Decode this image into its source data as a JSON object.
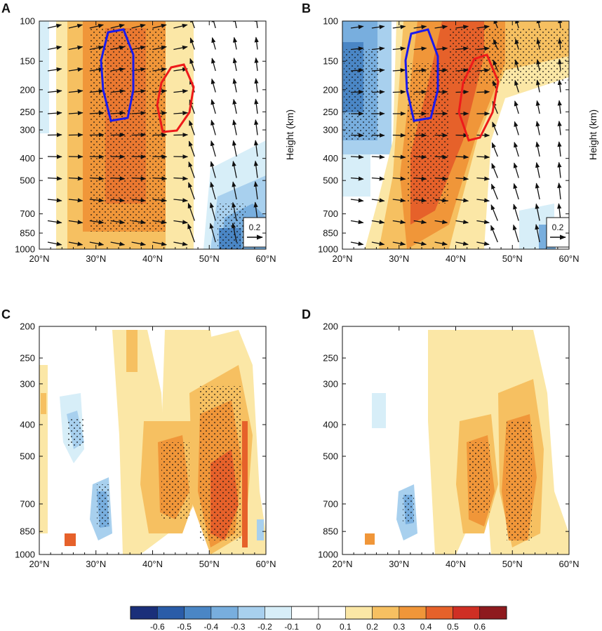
{
  "chart_data": [
    {
      "panel": "A",
      "type": "heatmap",
      "xlabel": "",
      "ylabel": "Height (km)",
      "x_range": [
        20,
        60
      ],
      "x_ticks": [
        "20°N",
        "30°N",
        "40°N",
        "50°N",
        "60°N"
      ],
      "x_tick_values": [
        20,
        30,
        40,
        50,
        60
      ],
      "y_ticks": [
        "100",
        "150",
        "200",
        "250",
        "300",
        "400",
        "500",
        "700",
        "850",
        "1000"
      ],
      "y_tick_values": [
        100,
        150,
        200,
        250,
        300,
        400,
        500,
        700,
        850,
        1000
      ],
      "y_scale": "log",
      "y_direction": "decreasing-up",
      "shading": "correlation",
      "vectors": true,
      "reference_vector": "0.2",
      "highlighted_regions": [
        {
          "color": "#1a1aee",
          "lon_range": [
            32,
            37
          ],
          "level_range": [
            120,
            270
          ]
        },
        {
          "color": "#ee1a1a",
          "lon_range": [
            42,
            47
          ],
          "level_range": [
            170,
            320
          ]
        }
      ],
      "features": {
        "positive_band": {
          "lon_range": [
            25,
            41
          ],
          "level_range": [
            100,
            900
          ],
          "peak_value": 0.4
        },
        "negative_region": {
          "lon_range": [
            50,
            58
          ],
          "level_range": [
            500,
            1000
          ],
          "peak_value": -0.4
        }
      }
    },
    {
      "panel": "B",
      "type": "heatmap",
      "xlabel": "",
      "ylabel": "Height (km)",
      "x_range": [
        20,
        60
      ],
      "x_ticks": [
        "20°N",
        "30°N",
        "40°N",
        "50°N",
        "60°N"
      ],
      "x_tick_values": [
        20,
        30,
        40,
        50,
        60
      ],
      "y_ticks": [
        "100",
        "150",
        "200",
        "250",
        "300",
        "400",
        "500",
        "700",
        "850",
        "1000"
      ],
      "y_tick_values": [
        100,
        150,
        200,
        250,
        300,
        400,
        500,
        700,
        850,
        1000
      ],
      "y_scale": "log",
      "y_direction": "decreasing-up",
      "shading": "correlation",
      "vectors": true,
      "reference_vector": "0.2",
      "highlighted_regions": [
        {
          "color": "#1a1aee",
          "lon_range": [
            31,
            36
          ],
          "level_range": [
            120,
            270
          ]
        },
        {
          "color": "#ee1a1a",
          "lon_range": [
            40,
            47
          ],
          "level_range": [
            140,
            320
          ]
        }
      ],
      "features": {
        "positive_band": {
          "lon_range": [
            28,
            48
          ],
          "level_range": [
            100,
            900
          ],
          "peak_value": 0.5
        },
        "negative_region": {
          "lon_range": [
            20,
            26
          ],
          "level_range": [
            100,
            400
          ],
          "peak_value": -0.5
        }
      }
    },
    {
      "panel": "C",
      "type": "heatmap",
      "xlabel": "",
      "ylabel": "",
      "x_range": [
        20,
        60
      ],
      "x_ticks": [
        "20°N",
        "30°N",
        "40°N",
        "50°N",
        "60°N"
      ],
      "x_tick_values": [
        20,
        30,
        40,
        50,
        60
      ],
      "y_ticks": [
        "200",
        "250",
        "300",
        "400",
        "500",
        "700",
        "850",
        "1000"
      ],
      "y_tick_values": [
        200,
        250,
        300,
        400,
        500,
        700,
        850,
        1000
      ],
      "y_scale": "log",
      "y_direction": "decreasing-up",
      "shading": "correlation",
      "vectors": false,
      "features": {
        "positive_core_1": {
          "lon_range": [
            42,
            47
          ],
          "level_range": [
            450,
            850
          ],
          "peak_value": 0.5
        },
        "positive_core_2": {
          "lon_range": [
            48,
            55
          ],
          "level_range": [
            300,
            850
          ],
          "peak_value": 0.5
        },
        "negative_patch": {
          "lon_range": [
            28,
            33
          ],
          "level_range": [
            380,
            850
          ],
          "peak_value": -0.4
        }
      }
    },
    {
      "panel": "D",
      "type": "heatmap",
      "xlabel": "",
      "ylabel": "",
      "x_range": [
        20,
        60
      ],
      "x_ticks": [
        "20°N",
        "30°N",
        "40°N",
        "50°N",
        "60°N"
      ],
      "x_tick_values": [
        20,
        30,
        40,
        50,
        60
      ],
      "y_ticks": [
        "200",
        "250",
        "300",
        "400",
        "500",
        "700",
        "850",
        "1000"
      ],
      "y_tick_values": [
        200,
        250,
        300,
        400,
        500,
        700,
        850,
        1000
      ],
      "y_scale": "log",
      "y_direction": "decreasing-up",
      "shading": "correlation",
      "vectors": false,
      "features": {
        "positive_core_1": {
          "lon_range": [
            42,
            47
          ],
          "level_range": [
            450,
            850
          ],
          "peak_value": 0.4
        },
        "positive_core_2": {
          "lon_range": [
            48,
            53
          ],
          "level_range": [
            320,
            850
          ],
          "peak_value": 0.4
        },
        "negative_patch": {
          "lon_range": [
            29,
            32
          ],
          "level_range": [
            600,
            850
          ],
          "peak_value": -0.3
        }
      }
    }
  ],
  "colorbar": {
    "labels": [
      "-0.6",
      "-0.5",
      "-0.4",
      "-0.3",
      "-0.2",
      "-0.1",
      "0",
      "0.1",
      "0.2",
      "0.3",
      "0.4",
      "0.5",
      "0.6"
    ],
    "colors": [
      "#1a2f7a",
      "#2a5ca8",
      "#4a86c5",
      "#78aede",
      "#a8d0ee",
      "#d7eef8",
      "#ffffff",
      "#ffffff",
      "#fbe7a6",
      "#f6c061",
      "#f09639",
      "#e6612a",
      "#cf2f24",
      "#8e1a1e"
    ]
  }
}
